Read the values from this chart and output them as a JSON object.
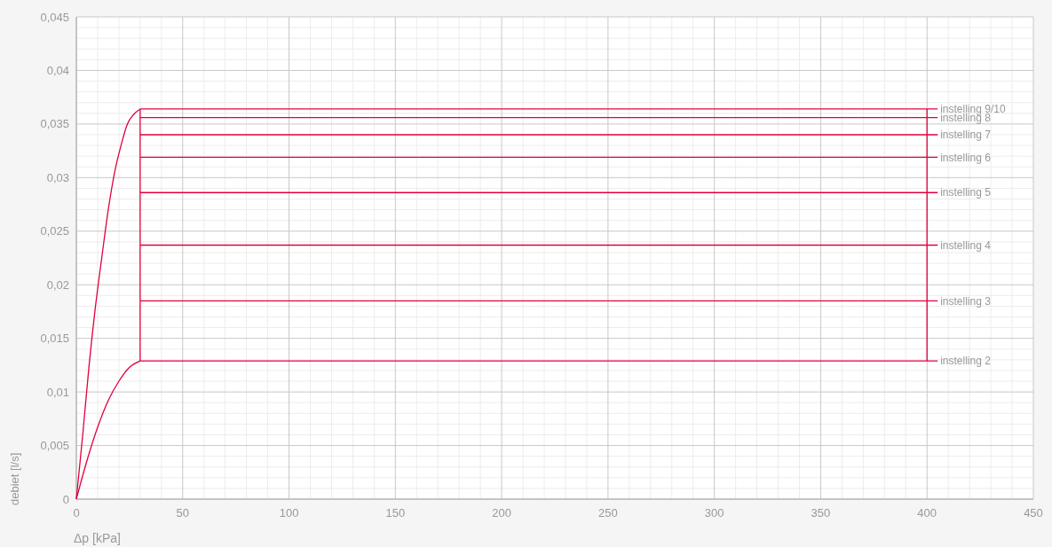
{
  "chart_data": {
    "type": "line",
    "xlabel": "Δp [kPa]",
    "ylabel": "debiet [l/s]",
    "xlim": [
      0,
      450
    ],
    "xticks": [
      0,
      50,
      100,
      150,
      200,
      250,
      300,
      350,
      400,
      450
    ],
    "ylim": [
      0,
      0.045
    ],
    "yticks": [
      {
        "value": 0,
        "label": "0"
      },
      {
        "value": 0.005,
        "label": "0,005"
      },
      {
        "value": 0.01,
        "label": "0,01"
      },
      {
        "value": 0.015,
        "label": "0,015"
      },
      {
        "value": 0.02,
        "label": "0,02"
      },
      {
        "value": 0.025,
        "label": "0,025"
      },
      {
        "value": 0.03,
        "label": "0,03"
      },
      {
        "value": 0.035,
        "label": "0,035"
      },
      {
        "value": 0.04,
        "label": "0,04"
      },
      {
        "value": 0.045,
        "label": "0,045"
      }
    ],
    "grid": true,
    "marker": "none",
    "line_style": "solid",
    "series": [
      {
        "color": "#e2003e",
        "x": [
          0,
          3,
          6,
          9,
          12,
          15,
          18,
          21,
          24,
          27,
          30
        ],
        "values": [
          0,
          0.006,
          0.0125,
          0.018,
          0.0226,
          0.027,
          0.0305,
          0.033,
          0.035,
          0.0359,
          0.0364
        ]
      },
      {
        "color": "#e2003e",
        "x": [
          0,
          5,
          10,
          15,
          20,
          25,
          30
        ],
        "values": [
          0,
          0.0036,
          0.0067,
          0.0092,
          0.011,
          0.0123,
          0.0129
        ]
      },
      {
        "color": "#e2003e",
        "x": [
          30,
          30
        ],
        "values": [
          0.0129,
          0.0364
        ]
      },
      {
        "color": "#e2003e",
        "x": [
          400,
          400
        ],
        "values": [
          0.0129,
          0.0364
        ]
      },
      {
        "name": "instelling 9/10",
        "color": "#e2003e",
        "x": [
          30,
          405
        ],
        "values": [
          0.0364,
          0.0364
        ]
      },
      {
        "name": "instelling 8",
        "color": "#e2003e",
        "x": [
          30,
          405
        ],
        "values": [
          0.0356,
          0.0356
        ]
      },
      {
        "name": "instelling 7",
        "color": "#e2003e",
        "x": [
          30,
          405
        ],
        "values": [
          0.034,
          0.034
        ]
      },
      {
        "name": "instelling 6",
        "color": "#e2003e",
        "x": [
          30,
          405
        ],
        "values": [
          0.0319,
          0.0319
        ]
      },
      {
        "name": "instelling 5",
        "color": "#e2003e",
        "x": [
          30,
          405
        ],
        "values": [
          0.0286,
          0.0286
        ]
      },
      {
        "name": "instelling 4",
        "color": "#e2003e",
        "x": [
          30,
          405
        ],
        "values": [
          0.0237,
          0.0237
        ]
      },
      {
        "name": "instelling 3",
        "color": "#e2003e",
        "x": [
          30,
          405
        ],
        "values": [
          0.0185,
          0.0185
        ]
      },
      {
        "name": "instelling 2",
        "color": "#e2003e",
        "x": [
          30,
          405
        ],
        "values": [
          0.0129,
          0.0129
        ]
      }
    ]
  }
}
